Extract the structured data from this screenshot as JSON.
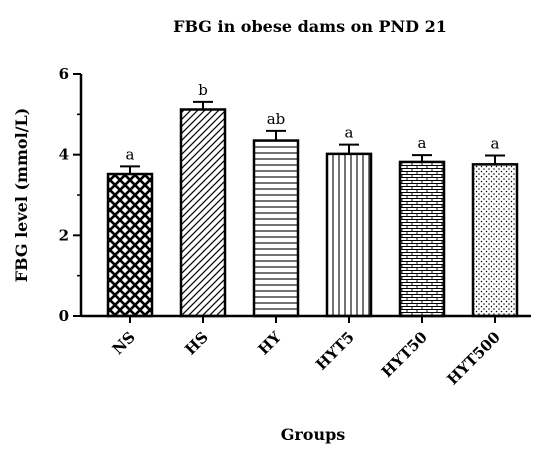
{
  "chart_data": {
    "type": "bar",
    "title": "FBG in obese dams on PND 21",
    "xlabel": "Groups",
    "ylabel": "FBG level (mmol/L)",
    "ylim": [
      0,
      6
    ],
    "yticks": [
      "0",
      "2",
      "4",
      "6"
    ],
    "categories": [
      "NS",
      "HS",
      "HY",
      "HYT5",
      "HYT50",
      "HYT500"
    ],
    "values": [
      3.52,
      5.12,
      4.35,
      4.02,
      3.82,
      3.76
    ],
    "errors": [
      0.19,
      0.19,
      0.24,
      0.23,
      0.17,
      0.22
    ],
    "significance": [
      "a",
      "b",
      "ab",
      "a",
      "a",
      "a"
    ],
    "patterns": [
      "crosshatch-diamond",
      "diagonal",
      "horizontal",
      "vertical",
      "brick",
      "dots"
    ],
    "colors": {
      "bar_stroke": "#000000",
      "fill": "#ffffff",
      "axis": "#000000"
    }
  }
}
